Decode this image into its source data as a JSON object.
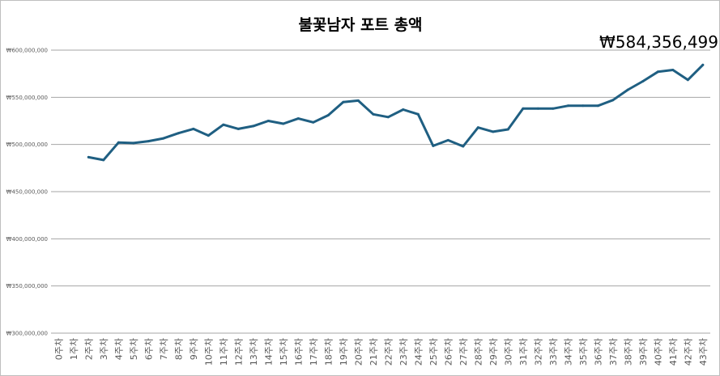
{
  "chart_data": {
    "type": "line",
    "title": "불꽃남자 포트 총액",
    "last_value_label": "₩584,356,499",
    "xlabel": "",
    "ylabel": "",
    "ylim": [
      300000000,
      600000000
    ],
    "yticks": [
      300000000,
      350000000,
      400000000,
      450000000,
      500000000,
      550000000,
      600000000
    ],
    "ytick_labels": [
      "₩300,000,000",
      "₩350,000,000",
      "₩400,000,000",
      "₩450,000,000",
      "₩500,000,000",
      "₩550,000,000",
      "₩600,000,000"
    ],
    "grid": true,
    "legend": "none",
    "categories": [
      "0주차",
      "1주차",
      "2주차",
      "3주차",
      "4주차",
      "5주차",
      "6주차",
      "7주차",
      "8주차",
      "9주차",
      "10주차",
      "11주차",
      "12주차",
      "13주차",
      "14주차",
      "15주차",
      "16주차",
      "17주차",
      "18주차",
      "19주차",
      "20주차",
      "21주차",
      "22주차",
      "23주차",
      "24주차",
      "25주차",
      "26주차",
      "27주차",
      "28주차",
      "29주차",
      "30주차",
      "31주차",
      "32주차",
      "33주차",
      "34주차",
      "35주차",
      "36주차",
      "37주차",
      "38주차",
      "39주차",
      "40주차",
      "41주차",
      "42주차",
      "43주차"
    ],
    "series": [
      {
        "color": "#1f5f82",
        "values": [
          null,
          null,
          486500000,
          483500000,
          502000000,
          501500000,
          503500000,
          506500000,
          512000000,
          516500000,
          509500000,
          521000000,
          516500000,
          519500000,
          525000000,
          522000000,
          527500000,
          523500000,
          531000000,
          545000000,
          546500000,
          532000000,
          529000000,
          537000000,
          532000000,
          498500000,
          504500000,
          498000000,
          518000000,
          513500000,
          516000000,
          538000000,
          538000000,
          538000000,
          541000000,
          541000000,
          541000000,
          547000000,
          558000000,
          567000000,
          577000000,
          579000000,
          568500000,
          584356499
        ]
      }
    ]
  },
  "colors": {
    "line": "#1f5f82",
    "grid": "#a6a6a6",
    "axis_text": "#595959"
  }
}
